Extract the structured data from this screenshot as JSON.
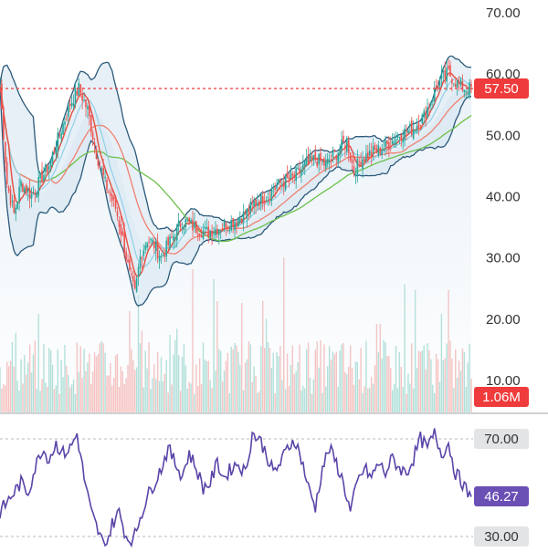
{
  "chart_data": [
    {
      "type": "candlestick",
      "panel": "price",
      "y_axis": {
        "ticks": [
          "70.00",
          "60.00",
          "50.00",
          "40.00",
          "30.00",
          "20.00",
          "10.00"
        ],
        "tick_values": [
          70,
          60,
          50,
          40,
          30,
          20,
          10
        ],
        "ylim": [
          8,
          73
        ],
        "side": "right"
      },
      "current_price": {
        "label": "57.50",
        "value": 57.5,
        "color": "#ef3b3b"
      },
      "volume": {
        "label": "1.06M",
        "color": "#ef3b3b"
      },
      "overlays": [
        {
          "kind": "bollinger_bands",
          "color": "#2b5a7a",
          "fill": "#cfe0ee"
        },
        {
          "kind": "moving_average",
          "color": "#e84c3d"
        },
        {
          "kind": "moving_average",
          "color": "#8fd0e8"
        },
        {
          "kind": "moving_average",
          "color": "#f08070"
        },
        {
          "kind": "moving_average",
          "color": "#6cc04a"
        }
      ],
      "up_color": "#26a69a",
      "down_color": "#ef5350",
      "close_series": [
        {
          "i": 0,
          "v": 58
        },
        {
          "i": 4,
          "v": 42
        },
        {
          "i": 8,
          "v": 37
        },
        {
          "i": 12,
          "v": 42
        },
        {
          "i": 18,
          "v": 40
        },
        {
          "i": 24,
          "v": 43
        },
        {
          "i": 28,
          "v": 45
        },
        {
          "i": 34,
          "v": 50
        },
        {
          "i": 40,
          "v": 55
        },
        {
          "i": 45,
          "v": 57.5
        },
        {
          "i": 50,
          "v": 54
        },
        {
          "i": 55,
          "v": 47
        },
        {
          "i": 60,
          "v": 42
        },
        {
          "i": 66,
          "v": 38
        },
        {
          "i": 70,
          "v": 33
        },
        {
          "i": 74,
          "v": 27
        },
        {
          "i": 77,
          "v": 24
        },
        {
          "i": 80,
          "v": 30
        },
        {
          "i": 84,
          "v": 33
        },
        {
          "i": 88,
          "v": 32
        },
        {
          "i": 92,
          "v": 30
        },
        {
          "i": 98,
          "v": 33
        },
        {
          "i": 104,
          "v": 36
        },
        {
          "i": 110,
          "v": 35
        },
        {
          "i": 118,
          "v": 34
        },
        {
          "i": 126,
          "v": 35
        },
        {
          "i": 134,
          "v": 36
        },
        {
          "i": 140,
          "v": 37
        },
        {
          "i": 146,
          "v": 39
        },
        {
          "i": 152,
          "v": 40
        },
        {
          "i": 160,
          "v": 42
        },
        {
          "i": 168,
          "v": 43
        },
        {
          "i": 174,
          "v": 45
        },
        {
          "i": 180,
          "v": 46
        },
        {
          "i": 186,
          "v": 45
        },
        {
          "i": 192,
          "v": 47
        },
        {
          "i": 198,
          "v": 49
        },
        {
          "i": 202,
          "v": 44
        },
        {
          "i": 206,
          "v": 46
        },
        {
          "i": 212,
          "v": 47
        },
        {
          "i": 220,
          "v": 48
        },
        {
          "i": 228,
          "v": 50
        },
        {
          "i": 236,
          "v": 51
        },
        {
          "i": 242,
          "v": 53
        },
        {
          "i": 248,
          "v": 57
        },
        {
          "i": 252,
          "v": 59
        },
        {
          "i": 256,
          "v": 60
        },
        {
          "i": 262,
          "v": 58
        },
        {
          "i": 266,
          "v": 57.5
        }
      ]
    },
    {
      "type": "line",
      "panel": "oscillator",
      "y_axis": {
        "ticks": [
          "70.00",
          "30.00"
        ],
        "tick_values": [
          70,
          30
        ],
        "ylim": [
          25,
          78
        ],
        "side": "right"
      },
      "current": {
        "label": "46.27",
        "value": 46.27,
        "color": "#6a4fb4"
      },
      "line_color": "#5b44a8",
      "series": [
        {
          "i": 0,
          "v": 40
        },
        {
          "i": 6,
          "v": 46
        },
        {
          "i": 12,
          "v": 52
        },
        {
          "i": 16,
          "v": 48
        },
        {
          "i": 20,
          "v": 58
        },
        {
          "i": 24,
          "v": 66
        },
        {
          "i": 28,
          "v": 62
        },
        {
          "i": 32,
          "v": 68
        },
        {
          "i": 36,
          "v": 64
        },
        {
          "i": 40,
          "v": 66
        },
        {
          "i": 44,
          "v": 72
        },
        {
          "i": 48,
          "v": 54
        },
        {
          "i": 52,
          "v": 40
        },
        {
          "i": 56,
          "v": 32
        },
        {
          "i": 60,
          "v": 25
        },
        {
          "i": 64,
          "v": 35
        },
        {
          "i": 68,
          "v": 40
        },
        {
          "i": 72,
          "v": 30
        },
        {
          "i": 76,
          "v": 28
        },
        {
          "i": 80,
          "v": 38
        },
        {
          "i": 84,
          "v": 46
        },
        {
          "i": 88,
          "v": 52
        },
        {
          "i": 92,
          "v": 58
        },
        {
          "i": 96,
          "v": 66
        },
        {
          "i": 100,
          "v": 60
        },
        {
          "i": 104,
          "v": 55
        },
        {
          "i": 108,
          "v": 64
        },
        {
          "i": 112,
          "v": 58
        },
        {
          "i": 116,
          "v": 50
        },
        {
          "i": 120,
          "v": 52
        },
        {
          "i": 124,
          "v": 60
        },
        {
          "i": 128,
          "v": 54
        },
        {
          "i": 132,
          "v": 58
        },
        {
          "i": 136,
          "v": 60
        },
        {
          "i": 140,
          "v": 56
        },
        {
          "i": 144,
          "v": 72
        },
        {
          "i": 148,
          "v": 70
        },
        {
          "i": 152,
          "v": 64
        },
        {
          "i": 156,
          "v": 56
        },
        {
          "i": 160,
          "v": 60
        },
        {
          "i": 164,
          "v": 66
        },
        {
          "i": 168,
          "v": 70
        },
        {
          "i": 172,
          "v": 62
        },
        {
          "i": 176,
          "v": 50
        },
        {
          "i": 180,
          "v": 42
        },
        {
          "i": 184,
          "v": 58
        },
        {
          "i": 188,
          "v": 66
        },
        {
          "i": 192,
          "v": 60
        },
        {
          "i": 196,
          "v": 52
        },
        {
          "i": 200,
          "v": 40
        },
        {
          "i": 204,
          "v": 52
        },
        {
          "i": 208,
          "v": 58
        },
        {
          "i": 212,
          "v": 54
        },
        {
          "i": 216,
          "v": 60
        },
        {
          "i": 220,
          "v": 56
        },
        {
          "i": 224,
          "v": 62
        },
        {
          "i": 228,
          "v": 58
        },
        {
          "i": 232,
          "v": 56
        },
        {
          "i": 236,
          "v": 62
        },
        {
          "i": 240,
          "v": 70
        },
        {
          "i": 244,
          "v": 66
        },
        {
          "i": 248,
          "v": 72
        },
        {
          "i": 252,
          "v": 64
        },
        {
          "i": 256,
          "v": 68
        },
        {
          "i": 260,
          "v": 56
        },
        {
          "i": 264,
          "v": 52
        },
        {
          "i": 268,
          "v": 46
        }
      ]
    }
  ]
}
